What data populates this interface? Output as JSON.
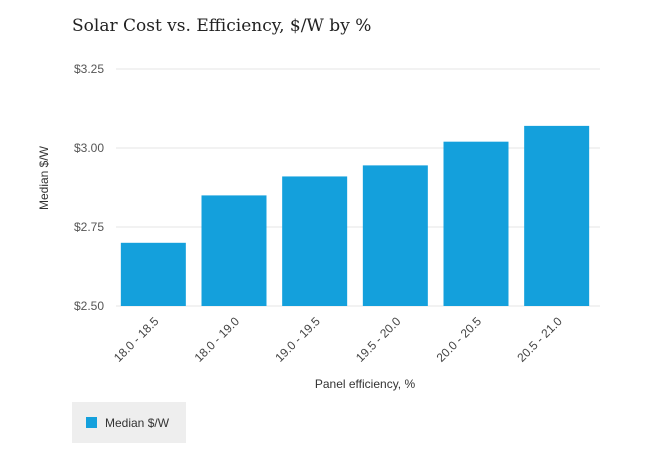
{
  "chart_data": {
    "type": "bar",
    "title": "Solar Cost vs. Efficiency, $/W by %",
    "xlabel": "Panel efficiency, %",
    "ylabel": "Median $/W",
    "categories": [
      "18.0 - 18.5",
      "18.0 - 19.0",
      "19.0 - 19.5",
      "19.5 - 20.0",
      "20.0 - 20.5",
      "20.5 - 21.0"
    ],
    "series": [
      {
        "name": "Median $/W",
        "values": [
          2.7,
          2.85,
          2.91,
          2.945,
          3.02,
          3.07
        ],
        "color": "#14a0dc"
      }
    ],
    "ylim": [
      2.5,
      3.25
    ],
    "yticks": [
      2.5,
      2.75,
      3.0,
      3.25
    ],
    "ytick_labels": [
      "$2.50",
      "$2.75",
      "$3.00",
      "$3.25"
    ],
    "grid": true,
    "legend_position": "bottom-left"
  },
  "colors": {
    "bar": "#14a0dc",
    "grid": "#e6e6e6",
    "legend_bg": "#eeeeee"
  }
}
